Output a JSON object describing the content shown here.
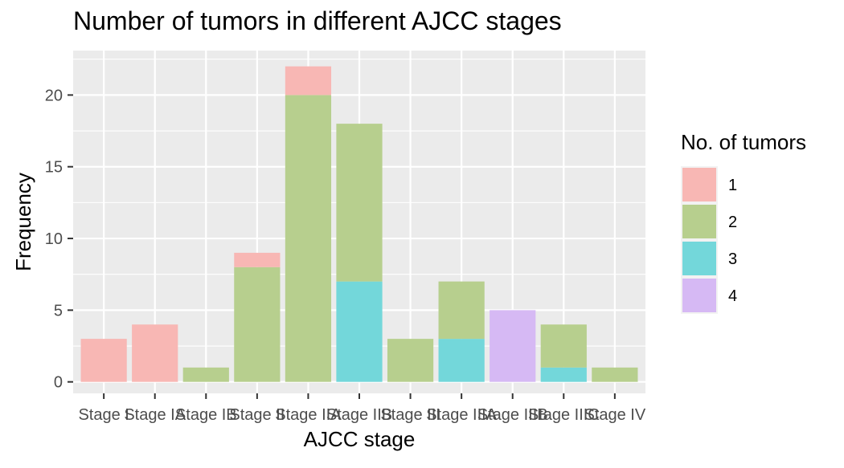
{
  "chart_data": {
    "type": "bar",
    "stacked": true,
    "title": "Number of tumors in different AJCC stages",
    "xlabel": "AJCC stage",
    "ylabel": "Frequency",
    "ylim": [
      -0.8,
      23.1
    ],
    "yticks": [
      0,
      5,
      10,
      15,
      20
    ],
    "grid": true,
    "legend": {
      "title": "No. of tumors",
      "position": "right"
    },
    "categories": [
      "Stage I",
      "Stage IA",
      "Stage IB",
      "Stage II",
      "Stage IIA",
      "Stage IIB",
      "Stage III",
      "Stage IIIA",
      "Stage IIIB",
      "Stage IIIC",
      "Stage IV"
    ],
    "series": [
      {
        "name": "1",
        "color": "#F8B7B4",
        "values": [
          3,
          4,
          0,
          1,
          2,
          0,
          0,
          0,
          0,
          0,
          0
        ]
      },
      {
        "name": "2",
        "color": "#B7CF8E",
        "values": [
          0,
          0,
          1,
          8,
          20,
          11,
          3,
          4,
          0,
          3,
          1
        ]
      },
      {
        "name": "3",
        "color": "#73D7DA",
        "values": [
          0,
          0,
          0,
          0,
          0,
          7,
          0,
          3,
          0,
          1,
          0
        ]
      },
      {
        "name": "4",
        "color": "#D6B9F4",
        "values": [
          0,
          0,
          0,
          0,
          0,
          0,
          0,
          0,
          5,
          0,
          0
        ]
      }
    ]
  }
}
